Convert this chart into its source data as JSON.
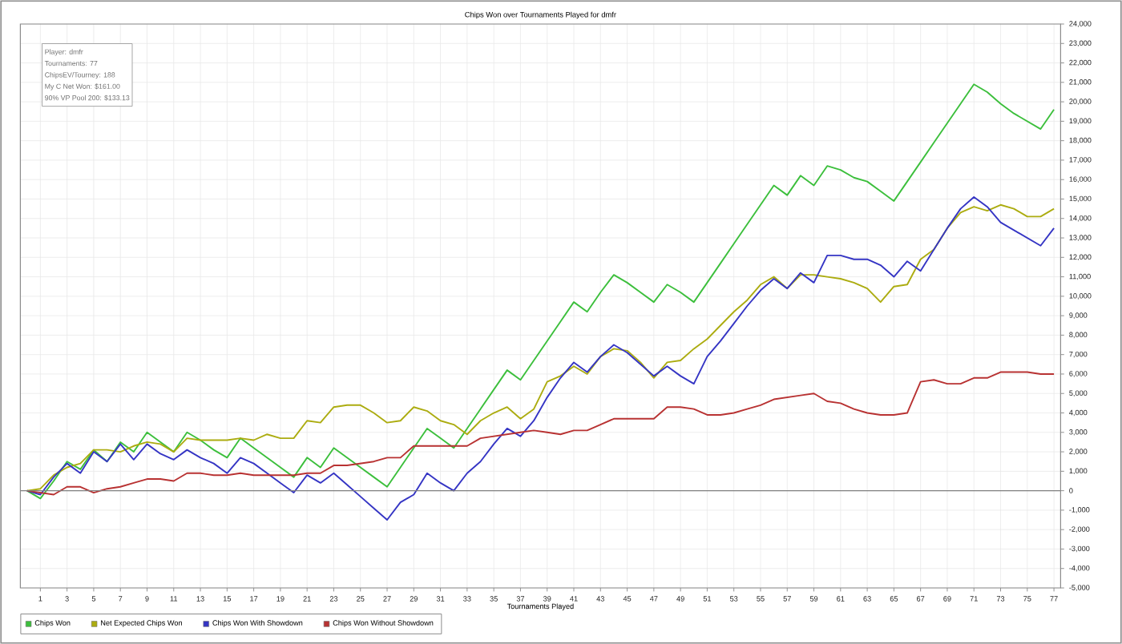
{
  "chart_data": {
    "type": "line",
    "title": "Chips Won over Tournaments Played for dmfr",
    "xlabel": "Tournaments Played",
    "annotations": [
      "Player: dmfr",
      "Tournaments: 77",
      "ChipsEV/Tourney: 188",
      "My C Net Won: $161.00",
      "90% VP Pool 200: $133.13"
    ],
    "x": [
      0,
      1,
      2,
      3,
      4,
      5,
      6,
      7,
      8,
      9,
      10,
      11,
      12,
      13,
      14,
      15,
      16,
      17,
      18,
      19,
      20,
      21,
      22,
      23,
      24,
      25,
      26,
      27,
      28,
      29,
      30,
      31,
      32,
      33,
      34,
      35,
      36,
      37,
      38,
      39,
      40,
      41,
      42,
      43,
      44,
      45,
      46,
      47,
      48,
      49,
      50,
      51,
      52,
      53,
      54,
      55,
      56,
      57,
      58,
      59,
      60,
      61,
      62,
      63,
      64,
      65,
      66,
      67,
      68,
      69,
      70,
      71,
      72,
      73,
      74,
      75,
      76,
      77
    ],
    "series": [
      {
        "name": "Chips Won",
        "color": "#3cbf3c",
        "values": [
          0,
          -400,
          500,
          1500,
          1100,
          2100,
          1500,
          2500,
          2000,
          3000,
          2500,
          2000,
          3000,
          2600,
          2100,
          1700,
          2700,
          2200,
          1700,
          1200,
          700,
          1700,
          1200,
          2200,
          1700,
          1200,
          700,
          200,
          1200,
          2200,
          3200,
          2700,
          2200,
          3200,
          4200,
          5200,
          6200,
          5700,
          6700,
          7700,
          8700,
          9700,
          9200,
          10200,
          11100,
          10700,
          10200,
          9700,
          10600,
          10200,
          9700,
          10700,
          11700,
          12700,
          13700,
          14700,
          15700,
          15200,
          16200,
          15700,
          16700,
          16500,
          16100,
          15900,
          15400,
          14900,
          15900,
          16900,
          17900,
          18900,
          19900,
          20900,
          20500,
          19900,
          19400,
          19000,
          18600,
          19600
        ]
      },
      {
        "name": "Net Expected Chips Won",
        "color": "#acac10",
        "values": [
          0,
          100,
          800,
          1200,
          1400,
          2100,
          2100,
          2000,
          2300,
          2500,
          2400,
          2000,
          2700,
          2600,
          2600,
          2600,
          2700,
          2600,
          2900,
          2700,
          2700,
          3600,
          3500,
          4300,
          4400,
          4400,
          4000,
          3500,
          3600,
          4300,
          4100,
          3600,
          3400,
          2900,
          3600,
          4000,
          4300,
          3700,
          4200,
          5600,
          5900,
          6400,
          6000,
          6900,
          7300,
          7200,
          6600,
          5800,
          6600,
          6700,
          7300,
          7800,
          8500,
          9200,
          9800,
          10600,
          11000,
          10400,
          11100,
          11100,
          11000,
          10900,
          10700,
          10400,
          9700,
          10500,
          10600,
          11900,
          12400,
          13500,
          14300,
          14600,
          14400,
          14700,
          14500,
          14100,
          14100,
          14500
        ]
      },
      {
        "name": "Chips Won With Showdown",
        "color": "#3535c4",
        "values": [
          0,
          -200,
          700,
          1400,
          900,
          2000,
          1500,
          2400,
          1600,
          2400,
          1900,
          1600,
          2100,
          1700,
          1400,
          900,
          1700,
          1400,
          900,
          400,
          -100,
          800,
          400,
          900,
          300,
          -300,
          -900,
          -1500,
          -600,
          -200,
          900,
          400,
          0,
          900,
          1500,
          2400,
          3200,
          2800,
          3600,
          4800,
          5800,
          6600,
          6100,
          6900,
          7500,
          7100,
          6500,
          5900,
          6400,
          5900,
          5500,
          6900,
          7700,
          8600,
          9500,
          10300,
          10900,
          10400,
          11200,
          10700,
          12100,
          12100,
          11900,
          11900,
          11600,
          11000,
          11800,
          11300,
          12400,
          13500,
          14500,
          15100,
          14600,
          13800,
          13400,
          13000,
          12600,
          13500
        ]
      },
      {
        "name": "Chips Won Without Showdown",
        "color": "#b83232",
        "values": [
          0,
          -100,
          -200,
          200,
          200,
          -100,
          100,
          200,
          400,
          600,
          600,
          500,
          900,
          900,
          800,
          800,
          900,
          800,
          800,
          800,
          800,
          900,
          900,
          1300,
          1300,
          1400,
          1500,
          1700,
          1700,
          2300,
          2300,
          2300,
          2300,
          2300,
          2700,
          2800,
          2900,
          3000,
          3100,
          3000,
          2900,
          3100,
          3100,
          3400,
          3700,
          3700,
          3700,
          3700,
          4300,
          4300,
          4200,
          3900,
          3900,
          4000,
          4200,
          4400,
          4700,
          4800,
          4900,
          5000,
          4600,
          4500,
          4200,
          4000,
          3900,
          3900,
          4000,
          5600,
          5700,
          5500,
          5500,
          5800,
          5800,
          6100,
          6100,
          6100,
          6000,
          6000
        ]
      }
    ],
    "xlim": [
      -0.5,
      77.5
    ],
    "xticks": [
      1,
      3,
      5,
      7,
      9,
      11,
      13,
      15,
      17,
      19,
      21,
      23,
      25,
      27,
      29,
      31,
      33,
      35,
      37,
      39,
      41,
      43,
      45,
      47,
      49,
      51,
      53,
      55,
      57,
      59,
      61,
      63,
      65,
      67,
      69,
      71,
      73,
      75,
      77
    ],
    "ylim": [
      -5000,
      24000
    ],
    "yticks": [
      {
        "value": -5000,
        "label": "-5,000"
      },
      {
        "value": -4000,
        "label": "-4,000"
      },
      {
        "value": -3000,
        "label": "-3,000"
      },
      {
        "value": -2000,
        "label": "-2,000"
      },
      {
        "value": -1000,
        "label": "-1,000"
      },
      0,
      {
        "value": 1000,
        "label": "1,000"
      },
      {
        "value": 2000,
        "label": "2,000"
      },
      {
        "value": 3000,
        "label": "3,000"
      },
      {
        "value": 4000,
        "label": "4,000"
      },
      {
        "value": 5000,
        "label": "5,000"
      },
      {
        "value": 6000,
        "label": "6,000"
      },
      {
        "value": 7000,
        "label": "7,000"
      },
      {
        "value": 8000,
        "label": "8,000"
      },
      {
        "value": 9000,
        "label": "9,000"
      },
      {
        "value": 10000,
        "label": "10,000"
      },
      {
        "value": 11000,
        "label": "11,000"
      },
      {
        "value": 12000,
        "label": "12,000"
      },
      {
        "value": 13000,
        "label": "13,000"
      },
      {
        "value": 14000,
        "label": "14,000"
      },
      {
        "value": 15000,
        "label": "15,000"
      },
      {
        "value": 16000,
        "label": "16,000"
      },
      {
        "value": 17000,
        "label": "17,000"
      },
      {
        "value": 18000,
        "label": "18,000"
      },
      {
        "value": 19000,
        "label": "19,000"
      },
      {
        "value": 20000,
        "label": "20,000"
      },
      {
        "value": 21000,
        "label": "21,000"
      },
      {
        "value": 22000,
        "label": "22,000"
      },
      {
        "value": 23000,
        "label": "23,000"
      },
      {
        "value": 24000,
        "label": "24,000"
      }
    ],
    "ref_lines": [
      {
        "axis": "y",
        "value": 0,
        "color": "#808080"
      }
    ],
    "grid": true,
    "legend": "bottom left"
  }
}
